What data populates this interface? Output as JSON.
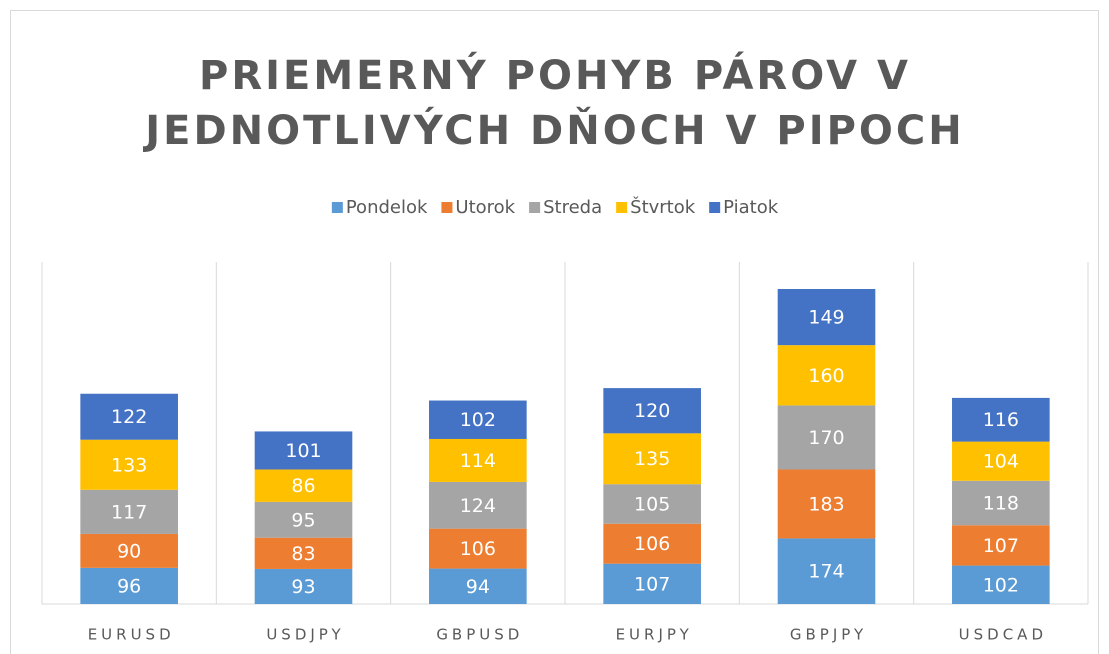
{
  "chart_data": {
    "type": "stacked_bar",
    "title": [
      "PRIEMERNÝ POHYB PÁROV V",
      "JEDNOTLIVÝCH DŇOCH V PIPOCH"
    ],
    "categories": [
      "EURUSD",
      "USDJPY",
      "GBPUSD",
      "EURJPY",
      "GBPJPY",
      "USDCAD"
    ],
    "series": [
      {
        "name": "Pondelok",
        "color": "#5b9bd5",
        "values": [
          96,
          93,
          94,
          107,
          174,
          102
        ]
      },
      {
        "name": "Utorok",
        "color": "#ed7d31",
        "values": [
          90,
          83,
          106,
          106,
          183,
          107
        ]
      },
      {
        "name": "Streda",
        "color": "#a5a5a5",
        "values": [
          117,
          95,
          124,
          105,
          170,
          118
        ]
      },
      {
        "name": "Štvrtok",
        "color": "#ffc000",
        "values": [
          133,
          86,
          114,
          135,
          160,
          104
        ]
      },
      {
        "name": "Piatok",
        "color": "#4472c4",
        "values": [
          122,
          101,
          102,
          120,
          149,
          116
        ]
      }
    ],
    "legend": "top"
  }
}
